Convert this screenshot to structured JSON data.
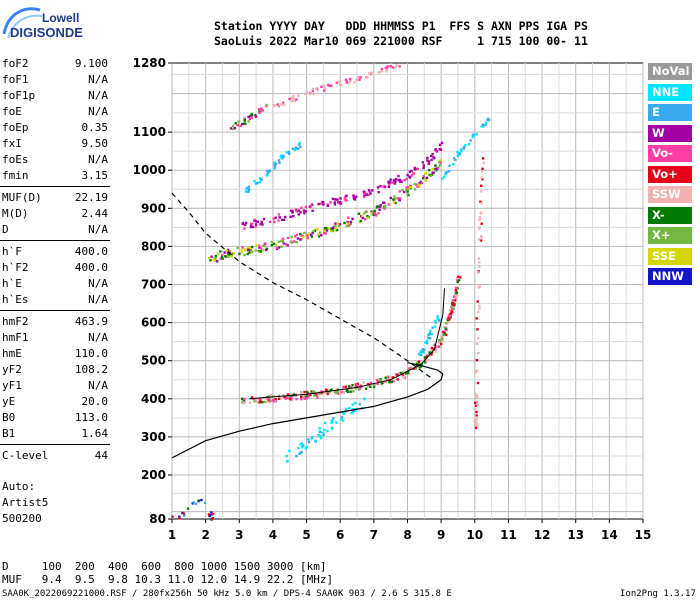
{
  "logo": {
    "line1": "Lowell",
    "line2": "DIGISONDE"
  },
  "header": {
    "labels": "Station YYYY DAY   DDD HHMMSS P1  FFS S AXN PPS IGA PS",
    "values": "SaoLuis 2022 Mar10 069 221000 RSF     1 715 100 00- 11"
  },
  "params_groups": [
    [
      {
        "name": "foF2",
        "value": "9.100"
      },
      {
        "name": "foF1",
        "value": "N/A"
      },
      {
        "name": "foF1p",
        "value": "N/A"
      },
      {
        "name": "foE",
        "value": "N/A"
      },
      {
        "name": "foEp",
        "value": "0.35"
      },
      {
        "name": "fxI",
        "value": "9.50"
      },
      {
        "name": "foEs",
        "value": "N/A"
      },
      {
        "name": "fmin",
        "value": "3.15"
      }
    ],
    [
      {
        "name": "MUF(D)",
        "value": "22.19"
      },
      {
        "name": "M(D)",
        "value": "2.44"
      },
      {
        "name": "D",
        "value": "N/A"
      }
    ],
    [
      {
        "name": "h`F",
        "value": "400.0"
      },
      {
        "name": "h`F2",
        "value": "400.0"
      },
      {
        "name": "h`E",
        "value": "N/A"
      },
      {
        "name": "h`Es",
        "value": "N/A"
      }
    ],
    [
      {
        "name": "hmF2",
        "value": "463.9"
      },
      {
        "name": "hmF1",
        "value": "N/A"
      },
      {
        "name": "hmE",
        "value": "110.0"
      },
      {
        "name": "yF2",
        "value": "108.2"
      },
      {
        "name": "yF1",
        "value": "N/A"
      },
      {
        "name": "yE",
        "value": "20.0"
      },
      {
        "name": "B0",
        "value": "113.0"
      },
      {
        "name": "B1",
        "value": "1.64"
      }
    ],
    [
      {
        "name": "C-level",
        "value": "44"
      }
    ]
  ],
  "autoscale": {
    "line1": "Auto:",
    "line2": "Artist5",
    "line3": "500200"
  },
  "legend": [
    {
      "label": "NoVal",
      "bg": "#999999",
      "fg": "#ffffff"
    },
    {
      "label": "NNE",
      "bg": "#00e5ff",
      "fg": "#ffffff"
    },
    {
      "label": "E",
      "bg": "#39a9ef",
      "fg": "#ffffff"
    },
    {
      "label": "W",
      "bg": "#a300a3",
      "fg": "#ffffff"
    },
    {
      "label": "Vo-",
      "bg": "#ff3fa6",
      "fg": "#ffffff"
    },
    {
      "label": "Vo+",
      "bg": "#e6001a",
      "fg": "#ffffff"
    },
    {
      "label": "SSW",
      "bg": "#f3b2b2",
      "fg": "#ffffff"
    },
    {
      "label": "X-",
      "bg": "#007a00",
      "fg": "#ffffff"
    },
    {
      "label": "X+",
      "bg": "#73b843",
      "fg": "#ffffff"
    },
    {
      "label": "SSE",
      "bg": "#d6d600",
      "fg": "#ffffff"
    },
    {
      "label": "NNW",
      "bg": "#1414c8",
      "fg": "#ffffff"
    }
  ],
  "footer": {
    "d_row": "D     100  200  400  600  800 1000 1500 3000 [km]",
    "muf_row": "MUF   9.4  9.5  9.8 10.3 11.0 12.0 14.9 22.2 [MHz]",
    "file_line": "SAA0K_2022069221000.RSF / 280fx256h 50 kHz 5.0 km / DPS-4 SAA0K 903 / 2.6 S 315.8 E",
    "version": "Ion2Png 1.3.17"
  },
  "chart_data": {
    "type": "scatter",
    "x_ticks": [
      "1",
      "2",
      "3",
      "4",
      "5",
      "6",
      "7",
      "8",
      "9",
      "10",
      "11",
      "12",
      "13",
      "14",
      "15"
    ],
    "y_ticks": [
      "80",
      "200",
      "300",
      "400",
      "500",
      "600",
      "700",
      "800",
      "900",
      "1000",
      "1100",
      "1280"
    ],
    "xlim": [
      1,
      15
    ],
    "ylim": [
      80,
      1280
    ],
    "grid": true,
    "colors": {
      "nne": "#00e5ff",
      "e": "#39a9ef",
      "w": "#a300a3",
      "vo_minus": "#ff3fa6",
      "vo_plus": "#e6001a",
      "ssw": "#f3b2b2",
      "x_minus": "#007a00",
      "x_plus": "#73b843",
      "sse": "#d6d600",
      "nnw": "#1414c8",
      "noval": "#999999"
    },
    "clusters": [
      {
        "name": "o-trace F2 (2-hop)",
        "mix": [
          "vo_minus",
          "x_minus",
          "w",
          "x_plus",
          "sse"
        ],
        "points": [
          [
            2.0,
            770
          ],
          [
            3.0,
            790
          ],
          [
            4.0,
            805
          ],
          [
            5.0,
            830
          ],
          [
            6.0,
            860
          ],
          [
            7.0,
            895
          ],
          [
            7.5,
            920
          ],
          [
            8.0,
            950
          ],
          [
            8.5,
            985
          ],
          [
            9.0,
            1020
          ]
        ],
        "spread": 9,
        "density": 10
      },
      {
        "name": "W upper trace",
        "mix": [
          "w",
          "vo_minus",
          "w"
        ],
        "points": [
          [
            3.0,
            855
          ],
          [
            4.0,
            875
          ],
          [
            5.0,
            900
          ],
          [
            6.0,
            925
          ],
          [
            7.0,
            950
          ],
          [
            8.0,
            990
          ],
          [
            8.5,
            1020
          ],
          [
            9.0,
            1070
          ]
        ],
        "spread": 7,
        "density": 7
      },
      {
        "name": "3-hop trace",
        "mix": [
          "vo_minus",
          "w",
          "x_minus",
          "x_plus"
        ],
        "points": [
          [
            2.7,
            1110
          ],
          [
            3.3,
            1140
          ],
          [
            3.8,
            1170
          ]
        ],
        "spread": 6,
        "density": 8
      },
      {
        "name": "3-hop faint",
        "mix": [
          "ssw",
          "vo_minus",
          "ssw"
        ],
        "points": [
          [
            4.0,
            1170
          ],
          [
            5.0,
            1205
          ],
          [
            6.0,
            1230
          ],
          [
            7.0,
            1255
          ],
          [
            7.8,
            1280
          ]
        ],
        "spread": 5,
        "density": 6
      },
      {
        "name": "E trace upper",
        "mix": [
          "e",
          "e",
          "nne"
        ],
        "points": [
          [
            3.2,
            950
          ],
          [
            3.7,
            990
          ],
          [
            4.3,
            1040
          ],
          [
            4.8,
            1070
          ]
        ],
        "spread": 5,
        "density": 6
      },
      {
        "name": "E trace right",
        "mix": [
          "e",
          "nne"
        ],
        "points": [
          [
            9.0,
            980
          ],
          [
            9.5,
            1050
          ],
          [
            10.1,
            1110
          ],
          [
            10.4,
            1140
          ]
        ],
        "spread": 4,
        "density": 5
      },
      {
        "name": "o-trace F2 (1-hop)",
        "mix": [
          "vo_minus",
          "x_minus",
          "x_plus",
          "vo_plus",
          "ssw"
        ],
        "points": [
          [
            3.0,
            400
          ],
          [
            4.0,
            405
          ],
          [
            5.0,
            413
          ],
          [
            6.0,
            425
          ],
          [
            7.0,
            443
          ],
          [
            7.8,
            465
          ],
          [
            8.5,
            505
          ],
          [
            9.0,
            560
          ],
          [
            9.3,
            640
          ],
          [
            9.5,
            720
          ]
        ],
        "spread": 7,
        "density": 12
      },
      {
        "name": "E trace lower",
        "mix": [
          "e",
          "nne"
        ],
        "points": [
          [
            8.3,
            510
          ],
          [
            8.6,
            560
          ],
          [
            8.9,
            620
          ]
        ],
        "spread": 5,
        "density": 6
      },
      {
        "name": "NNE sporadic",
        "mix": [
          "nne",
          "nne",
          "e"
        ],
        "points": [
          [
            4.4,
            250
          ],
          [
            5.0,
            285
          ],
          [
            5.6,
            330
          ],
          [
            6.2,
            370
          ],
          [
            6.8,
            400
          ]
        ],
        "spread": 10,
        "density": 6
      },
      {
        "name": "bottom-left scatter",
        "mix": [
          "nnw",
          "e",
          "vo_plus",
          "x_minus"
        ],
        "points": [
          [
            1.0,
            85
          ],
          [
            1.3,
            95
          ],
          [
            1.8,
            140
          ],
          [
            2.2,
            85
          ]
        ],
        "spread": 6,
        "density": 4
      },
      {
        "name": "right scatter",
        "mix": [
          "ssw",
          "ssw",
          "vo_plus"
        ],
        "points": [
          [
            10.0,
            410
          ],
          [
            10.0,
            330
          ],
          [
            10.1,
            760
          ],
          [
            10.2,
            1050
          ]
        ],
        "spread": 4,
        "density": 2
      }
    ],
    "dashed_curve": [
      [
        1.0,
        940
      ],
      [
        1.5,
        890
      ],
      [
        2.0,
        835
      ],
      [
        3.0,
        760
      ],
      [
        4.0,
        705
      ],
      [
        5.0,
        660
      ],
      [
        6.0,
        610
      ],
      [
        7.0,
        560
      ],
      [
        8.0,
        500
      ],
      [
        8.7,
        455
      ]
    ],
    "profile_curve": [
      [
        1.0,
        245
      ],
      [
        2.0,
        290
      ],
      [
        3.0,
        315
      ],
      [
        4.0,
        335
      ],
      [
        5.0,
        350
      ],
      [
        6.0,
        365
      ],
      [
        7.0,
        380
      ],
      [
        8.0,
        405
      ],
      [
        8.6,
        425
      ],
      [
        9.0,
        450
      ],
      [
        9.05,
        465
      ],
      [
        8.9,
        475
      ],
      [
        8.5,
        485
      ],
      [
        8.0,
        495
      ]
    ],
    "model_line": [
      [
        3.3,
        400
      ],
      [
        5.0,
        412
      ],
      [
        6.5,
        430
      ],
      [
        7.5,
        450
      ],
      [
        8.4,
        490
      ],
      [
        8.8,
        530
      ],
      [
        9.05,
        620
      ],
      [
        9.1,
        690
      ]
    ]
  }
}
